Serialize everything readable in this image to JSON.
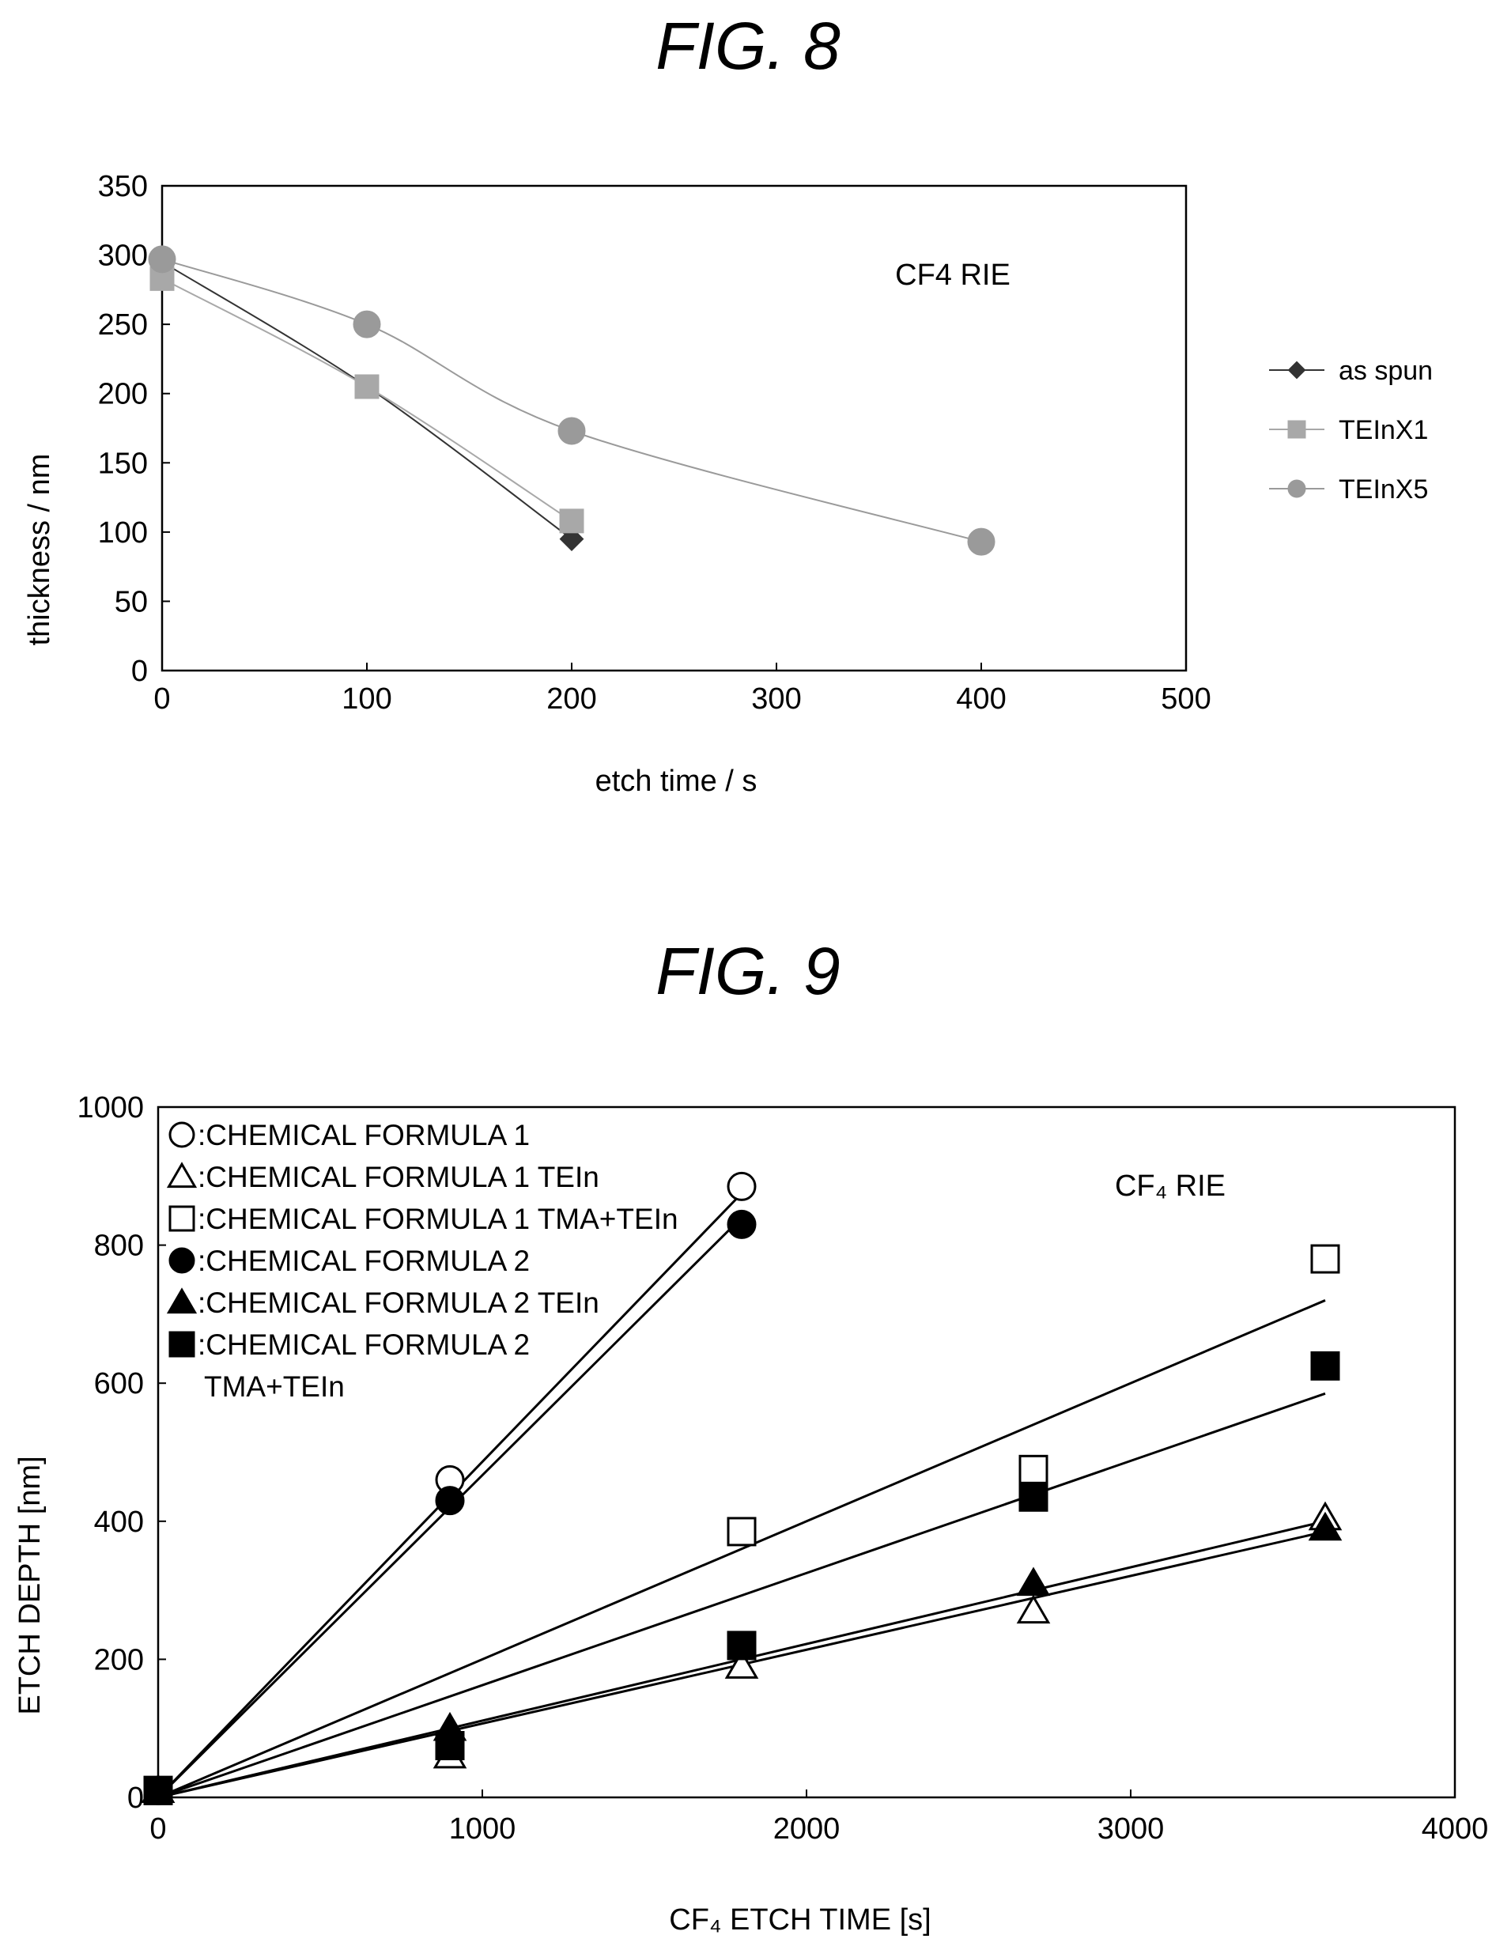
{
  "figures": [
    {
      "title": "FIG. 8"
    },
    {
      "title": "FIG. 9"
    }
  ],
  "chart_data": [
    {
      "type": "line",
      "title": "",
      "annotation": "CF4 RIE",
      "xlabel": "etch time / s",
      "ylabel": "thickness / nm",
      "xlim": [
        0,
        500
      ],
      "ylim": [
        0,
        350
      ],
      "xticks": [
        0,
        100,
        200,
        300,
        400,
        500
      ],
      "yticks": [
        0,
        50,
        100,
        150,
        200,
        250,
        300,
        350
      ],
      "grid": false,
      "legend_position": "right",
      "series": [
        {
          "name": "as spun",
          "marker": "diamond",
          "color": "#333333",
          "x": [
            0,
            100,
            200
          ],
          "y": [
            295,
            205,
            95
          ]
        },
        {
          "name": "TEInX1",
          "marker": "square",
          "color": "#a8a8a8",
          "x": [
            0,
            100,
            200
          ],
          "y": [
            283,
            205,
            108
          ]
        },
        {
          "name": "TEInX5",
          "marker": "circle",
          "color": "#9a9a9a",
          "x": [
            0,
            100,
            200,
            400
          ],
          "y": [
            297,
            250,
            173,
            93
          ]
        }
      ]
    },
    {
      "type": "scatter",
      "title": "",
      "annotation": "CF₄ RIE",
      "xlabel": "CF₄ ETCH TIME [s]",
      "ylabel": "ETCH DEPTH [nm]",
      "xlim": [
        0,
        4000
      ],
      "ylim": [
        0,
        1000
      ],
      "xticks": [
        0,
        1000,
        2000,
        3000,
        4000
      ],
      "yticks": [
        0,
        200,
        400,
        600,
        800,
        1000
      ],
      "grid": false,
      "legend_position": "top-left",
      "series": [
        {
          "name": ":CHEMICAL FORMULA 1",
          "marker": "circle-open",
          "x": [
            0,
            900,
            1800
          ],
          "y": [
            10,
            460,
            885
          ],
          "fit": [
            [
              0,
              0
            ],
            [
              1800,
              875
            ]
          ]
        },
        {
          "name": ":CHEMICAL FORMULA 1 TEIn",
          "marker": "triangle-open",
          "x": [
            0,
            900,
            1800,
            2700,
            3600
          ],
          "y": [
            10,
            60,
            190,
            270,
            405
          ],
          "fit": [
            [
              0,
              0
            ],
            [
              3600,
              400
            ]
          ]
        },
        {
          "name": ":CHEMICAL FORMULA 1 TMA+TEIn",
          "marker": "square-open",
          "x": [
            0,
            1800,
            2700,
            3600
          ],
          "y": [
            10,
            385,
            475,
            780
          ],
          "fit": [
            [
              0,
              0
            ],
            [
              3600,
              720
            ]
          ]
        },
        {
          "name": ":CHEMICAL FORMULA 2",
          "marker": "circle-filled",
          "x": [
            0,
            900,
            1800
          ],
          "y": [
            10,
            430,
            830
          ],
          "fit": [
            [
              0,
              0
            ],
            [
              1800,
              840
            ]
          ]
        },
        {
          "name": ":CHEMICAL FORMULA 2 TEIn",
          "marker": "triangle-filled",
          "x": [
            0,
            900,
            2700,
            3600
          ],
          "y": [
            10,
            100,
            310,
            390
          ],
          "fit": [
            [
              0,
              0
            ],
            [
              3600,
              385
            ]
          ]
        },
        {
          "name": ":CHEMICAL FORMULA 2",
          "name_line2": "TMA+TEIn",
          "marker": "square-filled",
          "x": [
            0,
            900,
            1800,
            2700,
            3600
          ],
          "y": [
            10,
            75,
            220,
            435,
            625
          ],
          "fit": [
            [
              0,
              0
            ],
            [
              3600,
              585
            ]
          ]
        }
      ]
    }
  ]
}
